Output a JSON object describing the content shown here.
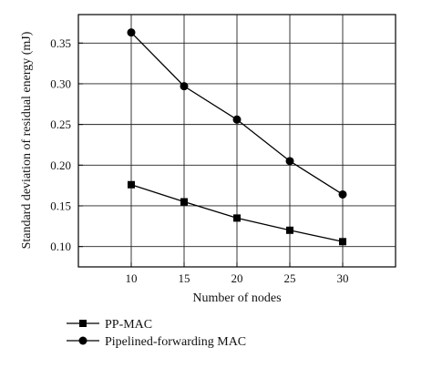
{
  "chart_data": {
    "type": "line",
    "title": "",
    "xlabel": "Number of nodes",
    "ylabel": "Standard deviation of residual energy (mJ)",
    "x": [
      10,
      15,
      20,
      25,
      30
    ],
    "xlim": [
      5,
      35
    ],
    "ylim": [
      0.075,
      0.385
    ],
    "yticks": [
      0.1,
      0.15,
      0.2,
      0.25,
      0.3,
      0.35
    ],
    "ytick_labels": [
      "0.10",
      "0.15",
      "0.20",
      "0.25",
      "0.30",
      "0.35"
    ],
    "xticks": [
      10,
      15,
      20,
      25,
      30
    ],
    "xtick_labels": [
      "10",
      "15",
      "20",
      "25",
      "30"
    ],
    "grid": true,
    "legend_position": "bottom-left outside",
    "series": [
      {
        "name": "PP-MAC",
        "marker": "square",
        "color": "#000000",
        "values": [
          0.176,
          0.155,
          0.135,
          0.12,
          0.106
        ]
      },
      {
        "name": "Pipelined-forwarding MAC",
        "marker": "circle",
        "color": "#000000",
        "values": [
          0.363,
          0.297,
          0.256,
          0.205,
          0.164
        ]
      }
    ]
  }
}
